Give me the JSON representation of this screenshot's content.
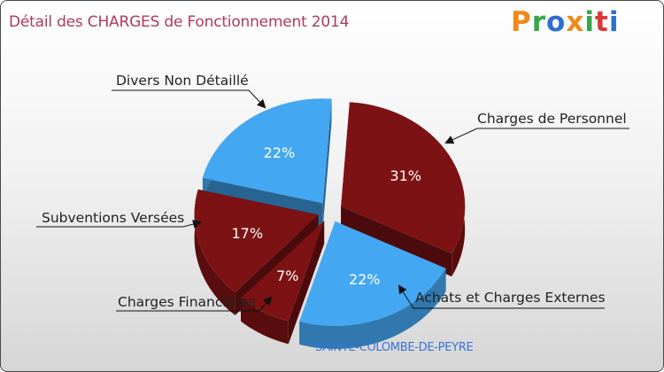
{
  "header": {
    "title": "Détail des CHARGES de Fonctionnement 2014",
    "logo": "Proxiti"
  },
  "footer": {
    "commune": "SAINTE-COLOMBE-DE-PEYRE"
  },
  "colors": {
    "blue": "#43a7f2",
    "maroon": "#7d1214",
    "title": "#b03a5b",
    "commune": "#3a73d6"
  },
  "chart_data": {
    "type": "pie",
    "title": "Détail des CHARGES de Fonctionnement 2014",
    "subtitle": "SAINTE-COLOMBE-DE-PEYRE",
    "slices": [
      {
        "label": "Charges de Personnel",
        "value": 31,
        "pct_label": "31%",
        "color": "#7d1214"
      },
      {
        "label": "Achats et Charges Externes",
        "value": 22,
        "pct_label": "22%",
        "color": "#43a7f2"
      },
      {
        "label": "Charges Financières",
        "value": 7,
        "pct_label": "7%",
        "color": "#7d1214"
      },
      {
        "label": "Subventions Versées",
        "value": 17,
        "pct_label": "17%",
        "color": "#7d1214"
      },
      {
        "label": "Divers Non Détaillé",
        "value": 22,
        "pct_label": "22%",
        "color": "#43a7f2"
      }
    ]
  }
}
